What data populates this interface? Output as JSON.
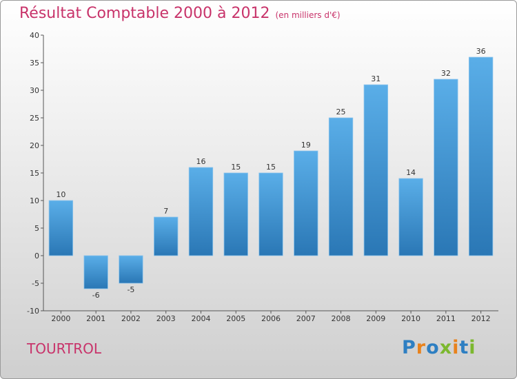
{
  "header": {
    "title": "Résultat Comptable 2000 à 2012",
    "subtitle": "(en milliers d'€)"
  },
  "footer": {
    "place": "TOURTROL"
  },
  "logo": {
    "letters": [
      "P",
      "r",
      "o",
      "x",
      "i",
      "t",
      "i"
    ],
    "colors": [
      "#2e7fc2",
      "#e8821c",
      "#2e7fc2",
      "#7cb82f",
      "#e8821c",
      "#2e7fc2",
      "#7cb82f"
    ]
  },
  "chart_data": {
    "type": "bar",
    "title": "Résultat Comptable 2000 à 2012",
    "subtitle": "(en milliers d'€)",
    "categories": [
      "2000",
      "2001",
      "2002",
      "2003",
      "2004",
      "2005",
      "2006",
      "2007",
      "2008",
      "2009",
      "2010",
      "2011",
      "2012"
    ],
    "values": [
      10,
      -6,
      -5,
      7,
      16,
      15,
      15,
      19,
      25,
      31,
      14,
      32,
      36
    ],
    "ylim": [
      -10,
      40
    ],
    "yticks": [
      -10,
      -5,
      0,
      5,
      10,
      15,
      20,
      25,
      30,
      35,
      40
    ],
    "grid": false,
    "bar_color": "#3d93d6"
  }
}
